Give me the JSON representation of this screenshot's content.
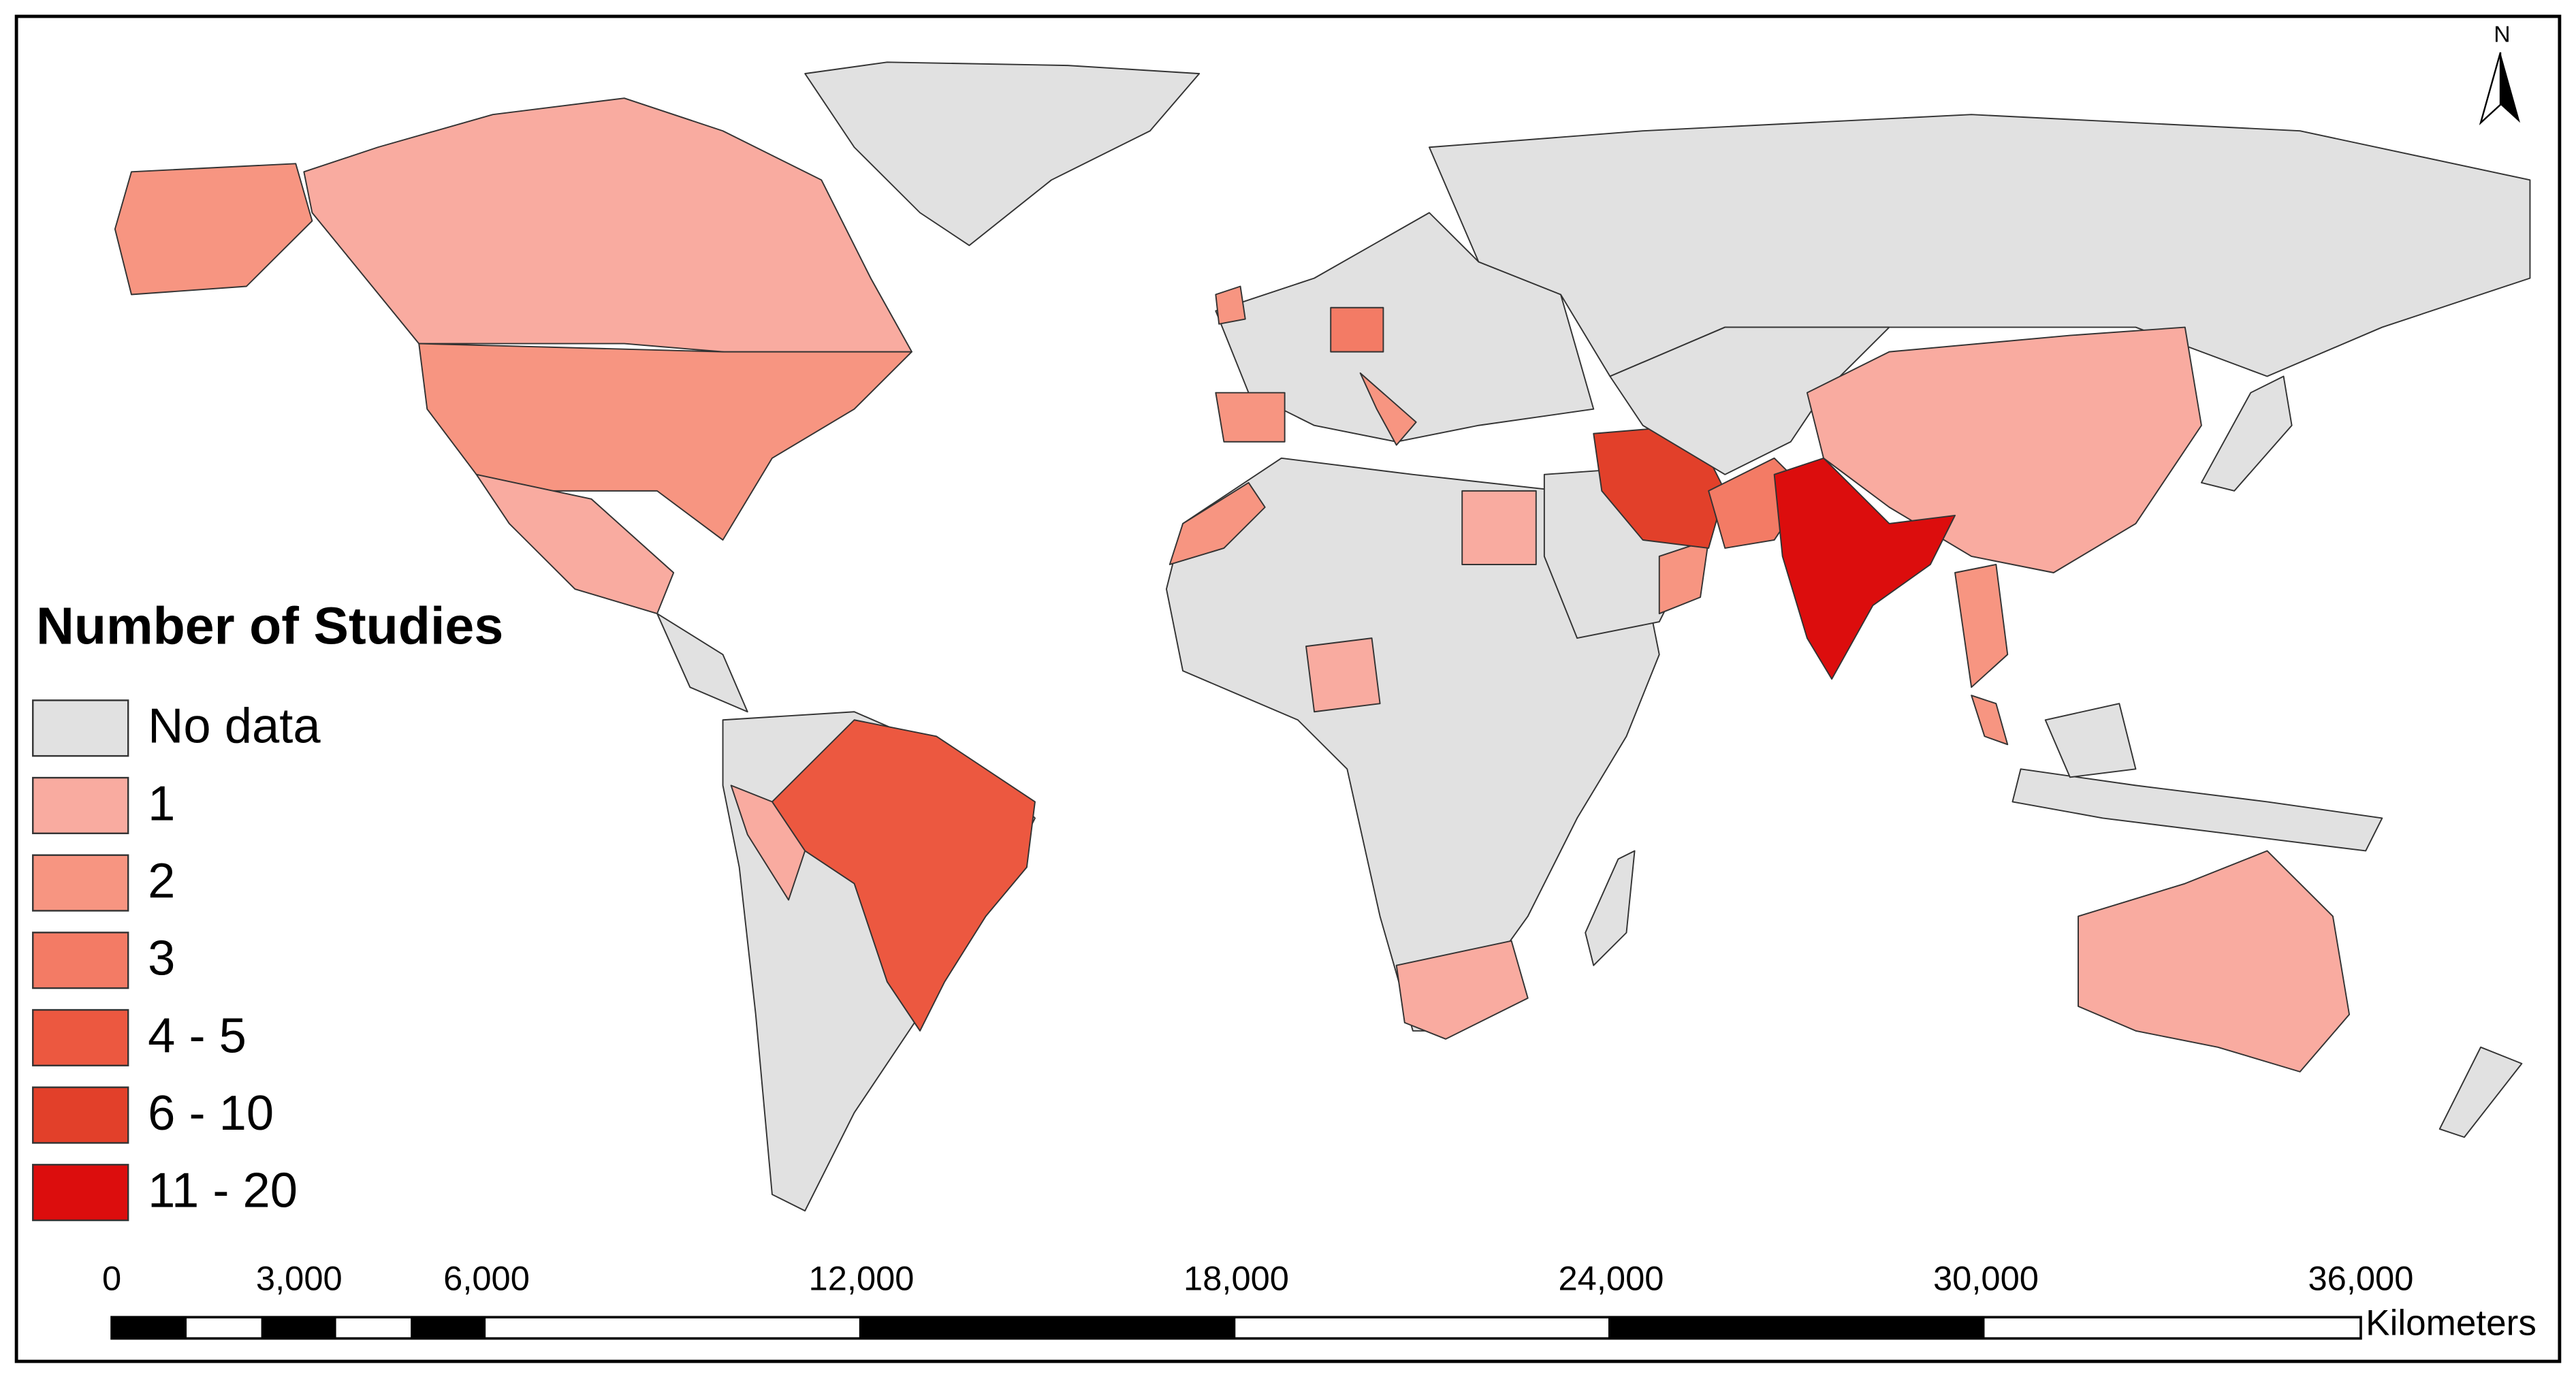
{
  "map": {
    "title": "Number of Studies",
    "legend": [
      {
        "label": "No data",
        "color": "#e1e1e1"
      },
      {
        "label": "1",
        "color": "#f9aba0"
      },
      {
        "label": "2",
        "color": "#f79581"
      },
      {
        "label": "3",
        "color": "#f37b65"
      },
      {
        "label": "4 - 5",
        "color": "#ec5840"
      },
      {
        "label": "6 - 10",
        "color": "#e2402a"
      },
      {
        "label": "11 - 20",
        "color": "#dc0d0d"
      }
    ],
    "north_label": "N",
    "scale_bar": {
      "unit": "Kilometers",
      "xlim": [
        0,
        36000
      ],
      "ticks": [
        0,
        {
          "value": 3000,
          "label": "3,000"
        },
        {
          "value": 6000,
          "label": "6,000"
        },
        {
          "value": 12000,
          "label": "12,000"
        },
        {
          "value": 18000,
          "label": "18,000"
        },
        {
          "value": 24000,
          "label": "24,000"
        },
        {
          "value": 30000,
          "label": "30,000"
        },
        {
          "value": 36000,
          "label": "36,000"
        }
      ]
    }
  }
}
